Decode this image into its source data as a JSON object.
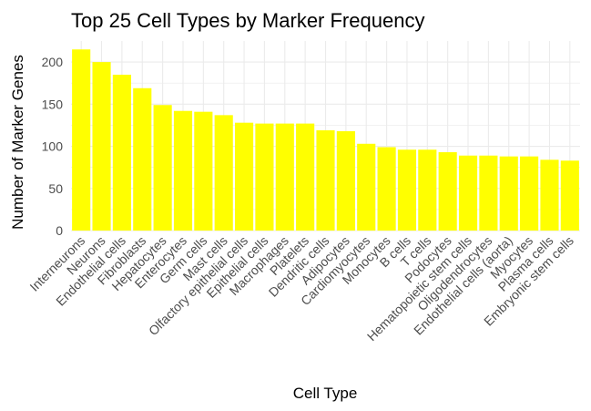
{
  "chart_data": {
    "type": "bar",
    "title": "Top 25 Cell Types by Marker Frequency",
    "xlabel": "Cell Type",
    "ylabel": "Number of Marker Genes",
    "ylim": [
      0,
      225
    ],
    "yticks": [
      0,
      50,
      100,
      150,
      200
    ],
    "grid": true,
    "bar_color": "#FFFF00",
    "grid_color": "#EBEBEB",
    "categories": [
      "Interneurons",
      "Neurons",
      "Endothelial cells",
      "Fibroblasts",
      "Hepatocytes",
      "Enterocytes",
      "Germ cells",
      "Mast cells",
      "Olfactory epithelial cells",
      "Epithelial cells",
      "Macrophages",
      "Platelets",
      "Dendritic cells",
      "Adipocytes",
      "Cardiomyocytes",
      "Monocytes",
      "B cells",
      "T cells",
      "Podocytes",
      "Hematopoietic stem cells",
      "Oligodendrocytes",
      "Endothelial cells (aorta)",
      "Myocytes",
      "Plasma cells",
      "Embryonic stem cells"
    ],
    "values": [
      215,
      200,
      185,
      169,
      149,
      142,
      141,
      137,
      128,
      127,
      127,
      127,
      119,
      118,
      103,
      99,
      96,
      96,
      93,
      89,
      89,
      88,
      88,
      84,
      83
    ]
  }
}
